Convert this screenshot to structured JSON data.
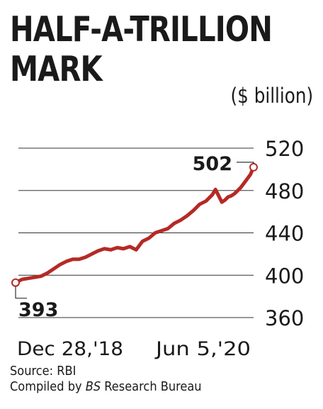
{
  "title_line1": "HALF-A-TRILLION",
  "title_line2": "MARK",
  "source": "Source: RBI",
  "compiled_prefix": "Compiled by ",
  "compiled_em": "BS",
  "compiled_suffix": " Research Bureau",
  "colors": {
    "line": "#b52a25",
    "grid": "#333333",
    "text": "#1a1a1a"
  },
  "chart_data": {
    "type": "line",
    "title": "HALF-A-TRILLION MARK",
    "unit_label": "($ billion)",
    "xlabel": "",
    "ylabel": "",
    "x_tick_labels": [
      "Dec 28,'18",
      "Jun 5,'20"
    ],
    "y_ticks": [
      360,
      400,
      440,
      480,
      520
    ],
    "ylim": [
      360,
      520
    ],
    "grid": true,
    "start_label": "393",
    "end_label": "502",
    "series": [
      {
        "x": [
          "2018-12-28",
          "2019-01-11",
          "2019-01-25",
          "2019-02-08",
          "2019-02-22",
          "2019-03-08",
          "2019-03-22",
          "2019-04-05",
          "2019-04-19",
          "2019-05-03",
          "2019-05-17",
          "2019-05-31",
          "2019-06-14",
          "2019-06-28",
          "2019-07-12",
          "2019-07-26",
          "2019-08-09",
          "2019-08-23",
          "2019-09-06",
          "2019-09-20",
          "2019-10-04",
          "2019-10-18",
          "2019-11-01",
          "2019-11-15",
          "2019-11-29",
          "2019-12-13",
          "2019-12-27",
          "2020-01-10",
          "2020-01-24",
          "2020-02-07",
          "2020-02-21",
          "2020-03-06",
          "2020-03-13",
          "2020-03-20",
          "2020-03-27",
          "2020-04-03",
          "2020-04-10",
          "2020-04-17",
          "2020-04-24",
          "2020-05-01",
          "2020-05-08",
          "2020-05-15",
          "2020-05-22",
          "2020-05-29",
          "2020-06-05"
        ],
        "values": [
          393,
          396,
          397,
          398,
          399,
          402,
          406,
          410,
          413,
          415,
          415,
          417,
          420,
          423,
          425,
          424,
          426,
          425,
          427,
          424,
          432,
          435,
          440,
          442,
          444,
          449,
          452,
          456,
          461,
          467,
          470,
          476,
          481,
          475,
          469,
          471,
          474,
          475,
          477,
          480,
          483,
          487,
          491,
          495,
          502
        ]
      }
    ]
  }
}
